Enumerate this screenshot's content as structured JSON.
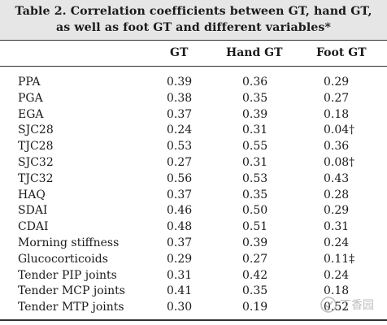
{
  "title": {
    "line1": "Table 2.  Correlation coefficients between GT, hand GT,",
    "line2": "as well as foot GT and different variables*"
  },
  "columns": {
    "gt": "GT",
    "hand": "Hand GT",
    "foot": "Foot GT"
  },
  "rows": [
    {
      "label": "PPA",
      "gt": "0.39",
      "hand": "0.36",
      "foot": "0.29"
    },
    {
      "label": "PGA",
      "gt": "0.38",
      "hand": "0.35",
      "foot": "0.27"
    },
    {
      "label": "EGA",
      "gt": "0.37",
      "hand": "0.39",
      "foot": "0.18"
    },
    {
      "label": "SJC28",
      "gt": "0.24",
      "hand": "0.31",
      "foot": "0.04†"
    },
    {
      "label": "TJC28",
      "gt": "0.53",
      "hand": "0.55",
      "foot": "0.36"
    },
    {
      "label": "SJC32",
      "gt": "0.27",
      "hand": "0.31",
      "foot": "0.08†"
    },
    {
      "label": "TJC32",
      "gt": "0.56",
      "hand": "0.53",
      "foot": "0.43"
    },
    {
      "label": "HAQ",
      "gt": "0.37",
      "hand": "0.35",
      "foot": "0.28"
    },
    {
      "label": "SDAI",
      "gt": "0.46",
      "hand": "0.50",
      "foot": "0.29"
    },
    {
      "label": "CDAI",
      "gt": "0.48",
      "hand": "0.51",
      "foot": "0.31"
    },
    {
      "label": "Morning stiffness",
      "gt": "0.37",
      "hand": "0.39",
      "foot": "0.24"
    },
    {
      "label": "Glucocorticoids",
      "gt": "0.29",
      "hand": "0.27",
      "foot": "0.11‡"
    },
    {
      "label": "Tender PIP joints",
      "gt": "0.31",
      "hand": "0.42",
      "foot": "0.24"
    },
    {
      "label": "Tender MCP joints",
      "gt": "0.41",
      "hand": "0.35",
      "foot": "0.18"
    },
    {
      "label": "Tender MTP joints",
      "gt": "0.30",
      "hand": "0.19",
      "foot": "0.52"
    }
  ],
  "watermark": {
    "icon": "watermark-logo-icon",
    "text": "丁香园"
  }
}
